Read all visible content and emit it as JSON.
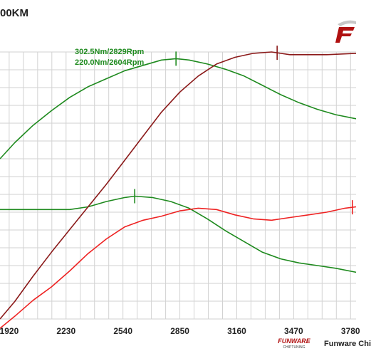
{
  "header": {
    "title": "00KM"
  },
  "logo": {
    "icon": "funware-logo",
    "color": "#b01010"
  },
  "brand": {
    "small": "FUNWARE",
    "sub": "CHIPTUNING",
    "text": "Funware Chi"
  },
  "chart_data": {
    "type": "line",
    "x_ticks": [
      "1920",
      "2230",
      "2540",
      "2850",
      "3160",
      "3470",
      "3780"
    ],
    "xlim": [
      1870,
      3810
    ],
    "annotations": [
      "302.5Nm/2829Rpm",
      "220.0Nm/2604Rpm"
    ],
    "series": [
      {
        "color": "#1e8a1e",
        "role": "torque-tuned",
        "x": [
          1870,
          1950,
          2050,
          2150,
          2250,
          2350,
          2450,
          2550,
          2650,
          2750,
          2829,
          2900,
          3000,
          3100,
          3200,
          3300,
          3400,
          3500,
          3600,
          3700,
          3810
        ],
        "y": [
          0.2,
          0.32,
          0.45,
          0.56,
          0.66,
          0.74,
          0.8,
          0.86,
          0.9,
          0.94,
          0.95,
          0.94,
          0.91,
          0.87,
          0.82,
          0.75,
          0.68,
          0.62,
          0.57,
          0.53,
          0.5
        ],
        "marker_x": 2829
      },
      {
        "color": "#1e8a1e",
        "role": "torque-stock",
        "x": [
          1870,
          1950,
          2050,
          2150,
          2250,
          2350,
          2450,
          2550,
          2604,
          2700,
          2800,
          2900,
          3000,
          3100,
          3200,
          3300,
          3400,
          3500,
          3600,
          3700,
          3810
        ],
        "y": [
          -0.18,
          -0.18,
          -0.18,
          -0.18,
          -0.18,
          -0.16,
          -0.12,
          -0.09,
          -0.08,
          -0.09,
          -0.12,
          -0.17,
          -0.25,
          -0.34,
          -0.42,
          -0.5,
          -0.55,
          -0.58,
          -0.6,
          -0.62,
          -0.65
        ],
        "marker_x": 2604
      },
      {
        "color": "#8b1a1a",
        "role": "power-tuned",
        "x": [
          1870,
          1950,
          2050,
          2150,
          2250,
          2350,
          2450,
          2550,
          2650,
          2750,
          2850,
          2950,
          3050,
          3150,
          3250,
          3350,
          3450,
          3550,
          3650,
          3810
        ],
        "y": [
          -1.0,
          -0.87,
          -0.68,
          -0.5,
          -0.33,
          -0.16,
          0.01,
          0.19,
          0.37,
          0.55,
          0.7,
          0.82,
          0.91,
          0.96,
          0.99,
          1.0,
          0.98,
          0.98,
          0.98,
          0.99
        ],
        "marker_x": 3380
      },
      {
        "color": "#ee2222",
        "role": "power-stock",
        "x": [
          1870,
          1950,
          2050,
          2150,
          2250,
          2350,
          2450,
          2550,
          2650,
          2750,
          2850,
          2950,
          3050,
          3150,
          3250,
          3350,
          3450,
          3550,
          3650,
          3750,
          3810
        ],
        "y": [
          -1.07,
          -0.98,
          -0.86,
          -0.76,
          -0.64,
          -0.51,
          -0.4,
          -0.31,
          -0.26,
          -0.23,
          -0.19,
          -0.17,
          -0.18,
          -0.22,
          -0.25,
          -0.26,
          -0.24,
          -0.22,
          -0.2,
          -0.17,
          -0.16
        ],
        "marker_x": 3790
      }
    ]
  }
}
